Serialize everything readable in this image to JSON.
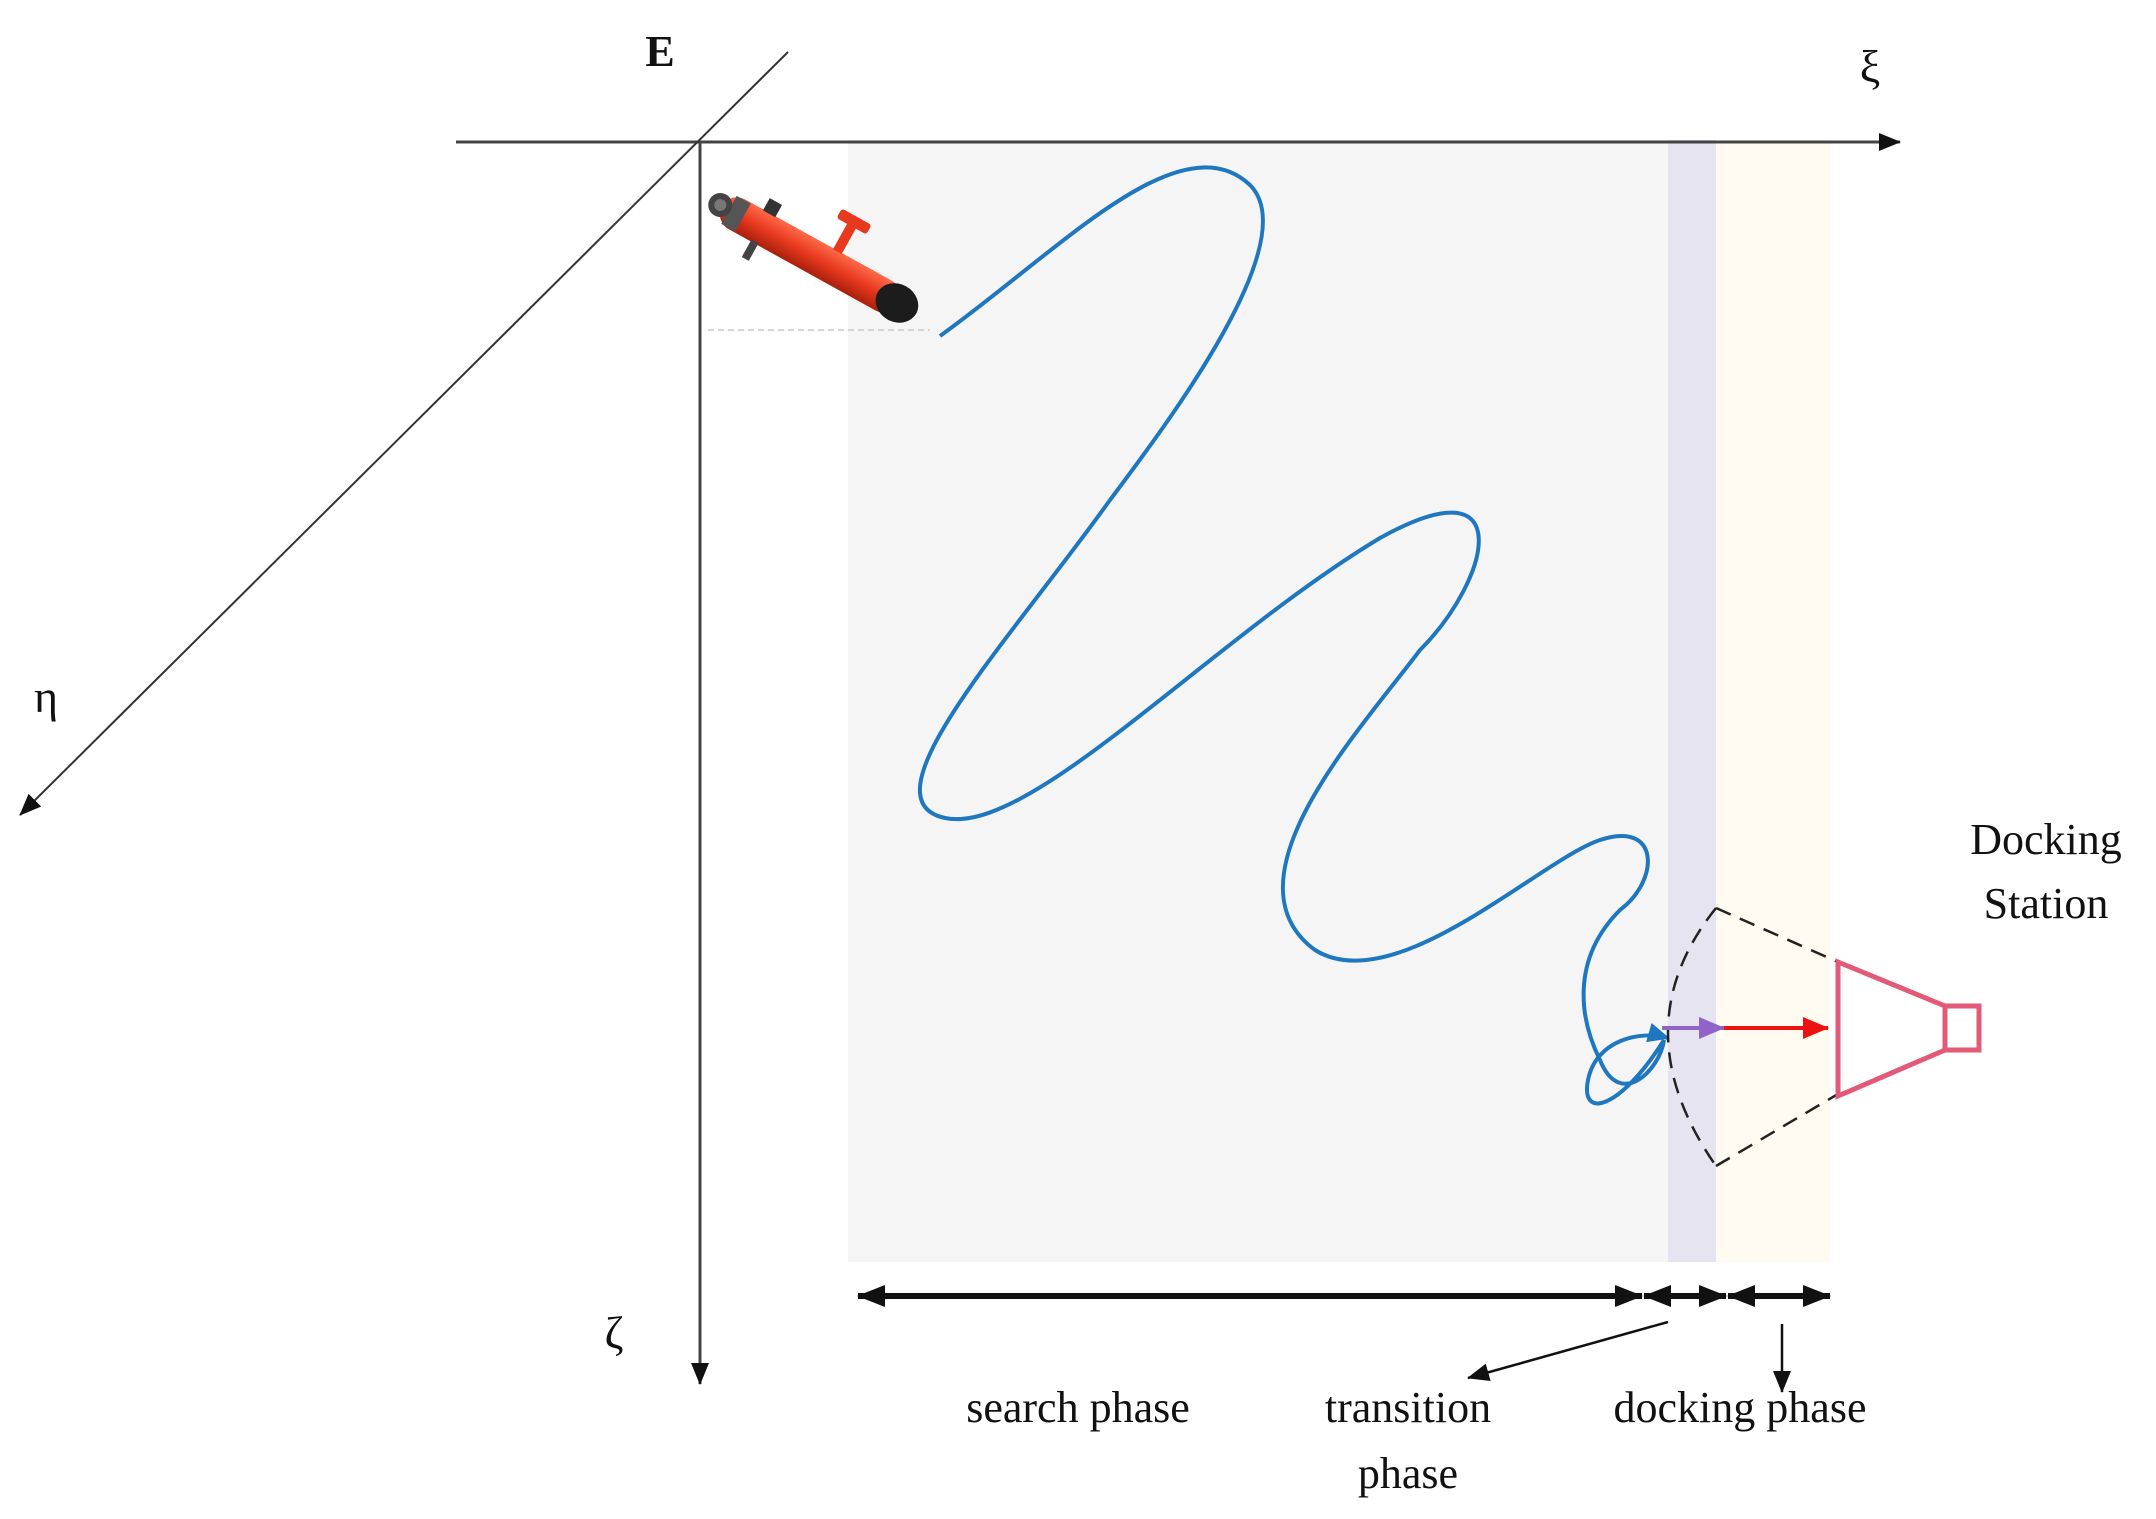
{
  "axes": {
    "origin_label": "E",
    "x_label": "ξ",
    "y_label": "η",
    "z_label": "ζ"
  },
  "docking_station": {
    "line1": "Docking",
    "line2": "Station"
  },
  "phases": {
    "search": "search phase",
    "transition_line1": "transition",
    "transition_line2": "phase",
    "docking": "docking phase"
  },
  "colors": {
    "trajectory": "#1f77c0",
    "search_region": "#f5f5f5",
    "transition_region": "#e6e4f0",
    "docking_region": "#fffbf0",
    "transition_arrow": "#9063c8",
    "docking_arrow": "#ee1111",
    "station": "#e35a78",
    "vehicle_body": "#e8391f"
  }
}
